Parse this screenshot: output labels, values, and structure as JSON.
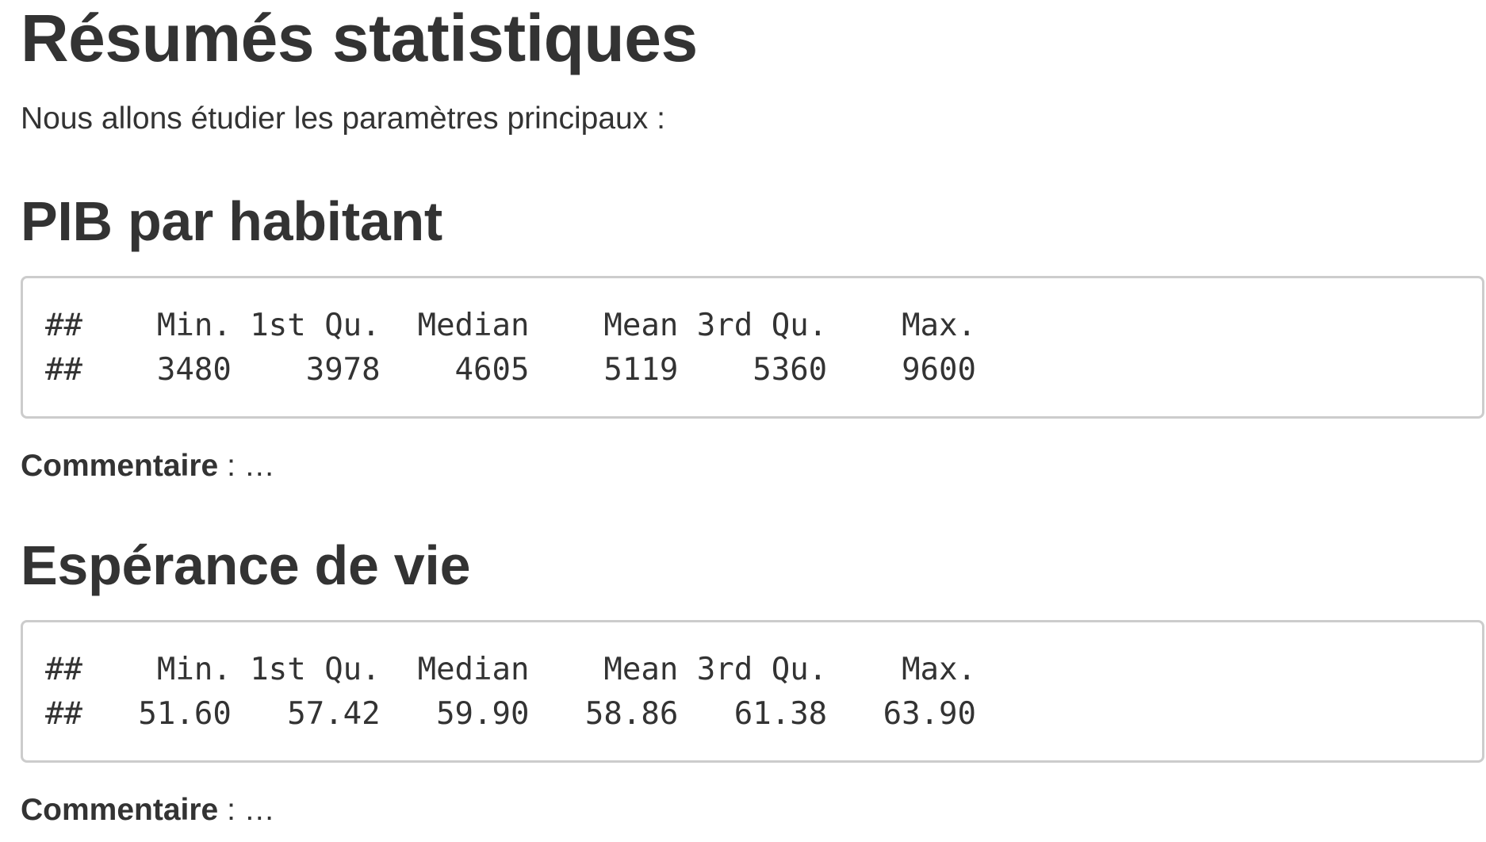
{
  "page": {
    "title": "Résumés statistiques",
    "intro": "Nous allons étudier les paramètres principaux :"
  },
  "sections": [
    {
      "heading": "PIB par habitant",
      "output_lines": [
        "##    Min. 1st Qu.  Median    Mean 3rd Qu.    Max. ",
        "##    3480    3978    4605    5119    5360    9600 "
      ],
      "comment_label": "Commentaire",
      "comment_text": " : …"
    },
    {
      "heading": "Espérance de vie",
      "output_lines": [
        "##    Min. 1st Qu.  Median    Mean 3rd Qu.    Max. ",
        "##   51.60   57.42   59.90   58.86   61.38   63.90 "
      ],
      "comment_label": "Commentaire",
      "comment_text": " : …"
    }
  ]
}
